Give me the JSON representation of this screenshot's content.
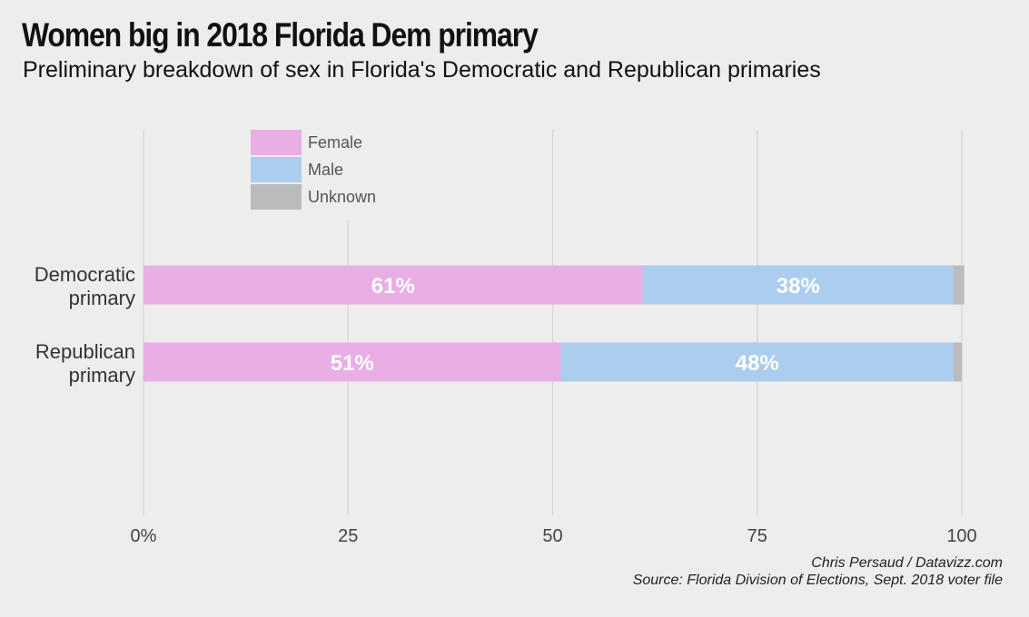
{
  "title": "Women big in 2018 Florida Dem primary",
  "subtitle": "Preliminary breakdown of sex in Florida's Democratic and Republican primaries",
  "credit": "Chris Persaud / Datavizz.com",
  "source": "Source: Florida Division of Elections, Sept. 2018 voter file",
  "colors": {
    "Female": "#e9aee6",
    "Male": "#abcdee",
    "Unknown": "#bbbbbb",
    "background": "#ededed",
    "grid": "#d6d6d6"
  },
  "chart_data": {
    "type": "bar",
    "orientation": "horizontal",
    "stacked": true,
    "categories": [
      [
        "Democratic",
        "primary"
      ],
      [
        "Republican",
        "primary"
      ]
    ],
    "series": [
      {
        "name": "Female",
        "values": [
          61,
          51
        ],
        "labels": [
          "61%",
          "51%"
        ]
      },
      {
        "name": "Male",
        "values": [
          38,
          48
        ],
        "labels": [
          "38%",
          "48%"
        ]
      },
      {
        "name": "Unknown",
        "values": [
          1.3,
          1
        ],
        "labels": [
          "",
          ""
        ]
      }
    ],
    "xlim": [
      0,
      100
    ],
    "xticks": [
      0,
      25,
      50,
      75,
      100
    ],
    "xtick_labels": [
      "0%",
      "25",
      "50",
      "75",
      "100"
    ],
    "grid": "vertical",
    "legend": "top-left"
  }
}
